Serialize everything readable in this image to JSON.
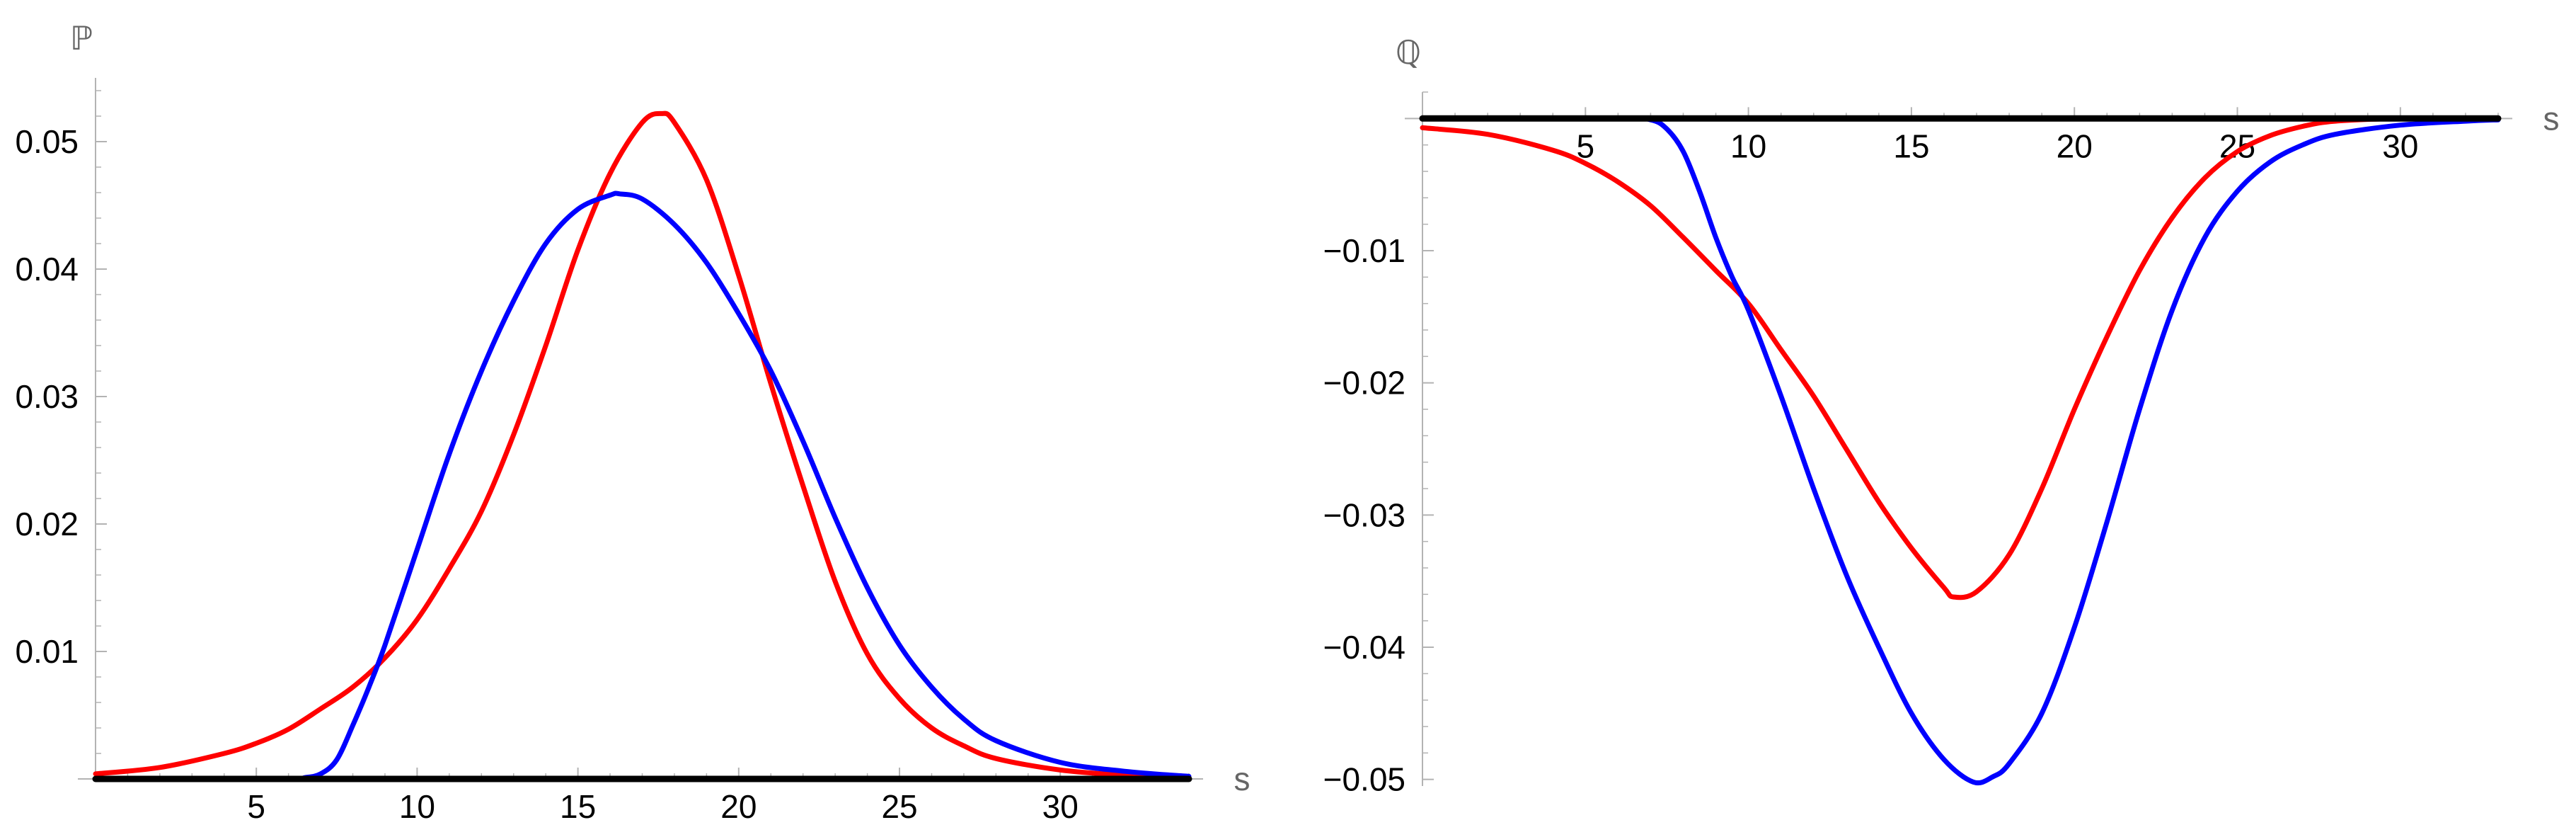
{
  "colors": {
    "red_series": "#ff0000",
    "blue_series": "#0000ff",
    "black_series": "#000000",
    "axis": "#b3b3b3"
  },
  "chart_data": [
    {
      "type": "line",
      "title": "",
      "ylabel": "ℙ",
      "xlabel": "s",
      "xlim": [
        0,
        34
      ],
      "ylim": [
        0,
        0.055
      ],
      "xticks": [
        {
          "value": 5,
          "label": "5"
        },
        {
          "value": 10,
          "label": "10"
        },
        {
          "value": 15,
          "label": "15"
        },
        {
          "value": 20,
          "label": "20"
        },
        {
          "value": 25,
          "label": "25"
        },
        {
          "value": 30,
          "label": "30"
        }
      ],
      "yticks": [
        {
          "value": 0.01,
          "label": "0.01"
        },
        {
          "value": 0.02,
          "label": "0.02"
        },
        {
          "value": 0.03,
          "label": "0.03"
        },
        {
          "value": 0.04,
          "label": "0.04"
        },
        {
          "value": 0.05,
          "label": "0.05"
        }
      ],
      "series": [
        {
          "name": "red",
          "color": "#ff0000",
          "x": [
            0,
            2,
            4,
            5,
            6,
            7,
            8,
            9,
            10,
            11,
            12,
            13,
            14,
            15,
            16,
            17,
            17.6,
            18,
            19,
            20,
            21,
            22,
            23,
            24,
            25,
            26,
            27,
            28,
            30,
            32,
            34
          ],
          "y": [
            0.0004,
            0.0009,
            0.002,
            0.0028,
            0.0039,
            0.0055,
            0.0072,
            0.0095,
            0.0125,
            0.0165,
            0.021,
            0.027,
            0.034,
            0.0415,
            0.0475,
            0.0515,
            0.0522,
            0.0515,
            0.047,
            0.0395,
            0.031,
            0.023,
            0.0155,
            0.0098,
            0.0063,
            0.004,
            0.0026,
            0.0016,
            0.0007,
            0.0003,
            0.0001
          ]
        },
        {
          "name": "blue",
          "color": "#0000ff",
          "x": [
            0,
            6,
            6.5,
            7,
            7.5,
            8,
            8.5,
            9,
            10,
            11,
            12,
            13,
            14,
            15,
            16,
            16.3,
            17,
            18,
            19,
            20,
            21,
            22,
            23,
            24,
            25,
            26,
            27,
            28,
            30,
            32,
            34
          ],
          "y": [
            0,
            0,
            0.0001,
            0.0004,
            0.0015,
            0.0042,
            0.0072,
            0.0105,
            0.018,
            0.0255,
            0.032,
            0.0375,
            0.042,
            0.0447,
            0.0458,
            0.0459,
            0.0455,
            0.0435,
            0.0405,
            0.0365,
            0.032,
            0.0265,
            0.0205,
            0.015,
            0.0105,
            0.0072,
            0.0047,
            0.003,
            0.0013,
            0.0006,
            0.0002
          ]
        },
        {
          "name": "black",
          "color": "#000000",
          "x": [
            0,
            34
          ],
          "y": [
            0,
            0
          ]
        }
      ]
    },
    {
      "type": "line",
      "title": "",
      "ylabel": "ℚ",
      "xlabel": "s",
      "xlim": [
        0,
        33
      ],
      "ylim": [
        -0.0505,
        0.002
      ],
      "xticks": [
        {
          "value": 5,
          "label": "5"
        },
        {
          "value": 10,
          "label": "10"
        },
        {
          "value": 15,
          "label": "15"
        },
        {
          "value": 20,
          "label": "20"
        },
        {
          "value": 25,
          "label": "25"
        },
        {
          "value": 30,
          "label": "30"
        }
      ],
      "yticks": [
        {
          "value": -0.01,
          "label": "-0.01"
        },
        {
          "value": -0.02,
          "label": "-0.02"
        },
        {
          "value": -0.03,
          "label": "-0.03"
        },
        {
          "value": -0.04,
          "label": "-0.04"
        },
        {
          "value": -0.05,
          "label": "-0.05"
        }
      ],
      "series": [
        {
          "name": "red",
          "color": "#ff0000",
          "x": [
            0,
            2,
            4,
            5,
            6,
            7,
            8,
            9,
            10,
            11,
            12,
            13,
            14,
            15,
            16,
            16.3,
            17,
            18,
            19,
            20,
            21,
            22,
            23,
            24,
            25,
            26,
            27,
            28,
            30,
            32,
            33
          ],
          "y": [
            -0.0007,
            -0.0012,
            -0.0024,
            -0.0034,
            -0.0048,
            -0.0066,
            -0.009,
            -0.0115,
            -0.014,
            -0.0175,
            -0.021,
            -0.025,
            -0.029,
            -0.0325,
            -0.0355,
            -0.0362,
            -0.0358,
            -0.033,
            -0.028,
            -0.022,
            -0.0165,
            -0.0115,
            -0.0075,
            -0.0045,
            -0.0025,
            -0.0013,
            -0.0006,
            -0.0002,
            0,
            0,
            0
          ]
        },
        {
          "name": "blue",
          "color": "#0000ff",
          "x": [
            0,
            6,
            7,
            7.5,
            8,
            8.5,
            9,
            9.5,
            10,
            11,
            12,
            13,
            14,
            15,
            16,
            16.9,
            17.5,
            18,
            19,
            20,
            21,
            22,
            23,
            24,
            25,
            26,
            27,
            28,
            30,
            32,
            33
          ],
          "y": [
            0,
            0,
            -0.0001,
            -0.0008,
            -0.0025,
            -0.0055,
            -0.009,
            -0.012,
            -0.0145,
            -0.021,
            -0.028,
            -0.0345,
            -0.04,
            -0.045,
            -0.0485,
            -0.0502,
            -0.0498,
            -0.0488,
            -0.045,
            -0.0385,
            -0.0305,
            -0.022,
            -0.0145,
            -0.009,
            -0.0055,
            -0.0033,
            -0.002,
            -0.0012,
            -0.0005,
            -0.0002,
            -0.0001
          ]
        },
        {
          "name": "black",
          "color": "#000000",
          "x": [
            0,
            33
          ],
          "y": [
            0,
            0
          ]
        }
      ]
    }
  ]
}
